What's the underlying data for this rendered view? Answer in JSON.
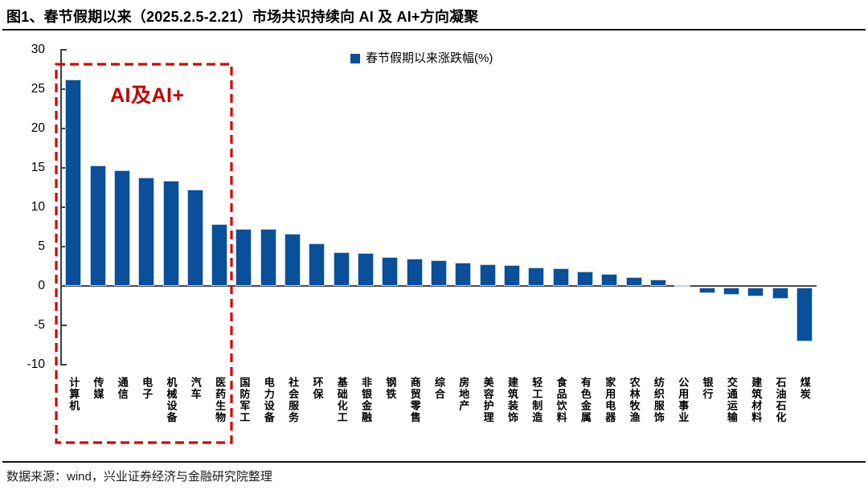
{
  "header": {
    "title": "图1、春节假期以来（2025.2.5-2.21）市场共识持续向 AI 及 AI+方向凝聚"
  },
  "chart_data": {
    "type": "bar",
    "title": "春节假期以来涨跌幅(%)",
    "legend": "春节假期以来涨跌幅(%)",
    "legend_position": "top-center",
    "xlabel": "",
    "ylabel": "",
    "ylim": [
      -10,
      30
    ],
    "yticks": [
      30,
      25,
      20,
      15,
      10,
      5,
      0,
      -5,
      -10
    ],
    "grid": false,
    "bar_color": "#0A4F9A",
    "bar_edge_color": "#B9D1EA",
    "categories": [
      "计算机",
      "传媒",
      "通信",
      "电子",
      "机械设备",
      "汽车",
      "医药生物",
      "国防军工",
      "电力设备",
      "社会服务",
      "环保",
      "基础化工",
      "非银金融",
      "钢铁",
      "商贸零售",
      "综合",
      "房地产",
      "美容护理",
      "建筑装饰",
      "轻工制造",
      "食品饮料",
      "有色金属",
      "家用电器",
      "农林牧渔",
      "纺织服饰",
      "公用事业",
      "银行",
      "交通运输",
      "建筑材料",
      "石油石化",
      "煤炭"
    ],
    "values": [
      26.2,
      15.3,
      14.7,
      13.8,
      13.4,
      12.2,
      7.9,
      7.3,
      7.2,
      6.6,
      5.4,
      4.3,
      4.2,
      3.7,
      3.5,
      3.3,
      3.0,
      2.8,
      2.7,
      2.4,
      2.2,
      1.8,
      1.5,
      1.1,
      0.8,
      0.1,
      -0.7,
      -0.9,
      -1.1,
      -1.4,
      -6.8
    ],
    "annotation": {
      "label": "AI及AI+",
      "text_color": "#C00000",
      "box_color": "#D80000",
      "box_style": "dashed",
      "box_covers": [
        "计算机",
        "传媒",
        "通信",
        "电子",
        "机械设备",
        "汽车",
        "医药生物"
      ]
    }
  },
  "footer": {
    "source": "数据来源：wind，兴业证券经济与金融研究院整理"
  }
}
